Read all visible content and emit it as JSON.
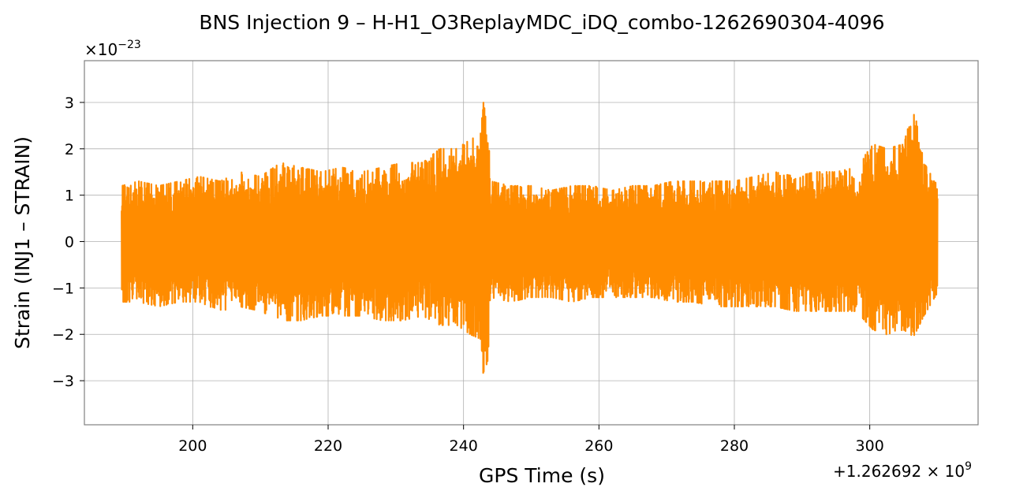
{
  "chart_data": {
    "type": "line",
    "title": "BNS Injection 9 – H-H1_O3ReplayMDC_iDQ_combo-1262690304-4096",
    "xlabel": "GPS Time (s)",
    "ylabel": "Strain (INJ1 – STRAIN)",
    "x_offset_label": "+1.262692 × 10",
    "x_offset_exp": "9",
    "y_scale_label": "×10",
    "y_scale_exp": "−23",
    "xlim": [
      184,
      316
    ],
    "ylim": [
      -3.95,
      3.9
    ],
    "x_ticks": [
      200,
      220,
      240,
      260,
      280,
      300
    ],
    "x_tick_labels": [
      "200",
      "220",
      "240",
      "260",
      "280",
      "300"
    ],
    "y_ticks": [
      -3,
      -2,
      -1,
      0,
      1,
      2,
      3
    ],
    "y_tick_labels": [
      "−3",
      "−2",
      "−1",
      "0",
      "1",
      "2",
      "3"
    ],
    "grid": true,
    "color": "#ff8c00",
    "series": [
      {
        "x_range": [
          189.5,
          310
        ],
        "envelope": [
          [
            189.5,
            1.2,
            -1.3
          ],
          [
            192,
            1.3,
            -1.3
          ],
          [
            195,
            1.2,
            -1.4
          ],
          [
            198,
            1.3,
            -1.3
          ],
          [
            201,
            1.4,
            -1.3
          ],
          [
            204,
            1.3,
            -1.5
          ],
          [
            207,
            1.5,
            -1.4
          ],
          [
            210,
            1.4,
            -1.5
          ],
          [
            213,
            1.7,
            -1.7
          ],
          [
            216,
            1.6,
            -1.7
          ],
          [
            219,
            1.5,
            -1.6
          ],
          [
            222,
            1.6,
            -1.6
          ],
          [
            225,
            1.5,
            -1.6
          ],
          [
            228,
            1.6,
            -1.7
          ],
          [
            231,
            1.7,
            -1.7
          ],
          [
            234,
            1.7,
            -1.6
          ],
          [
            236.5,
            2.0,
            -1.8
          ],
          [
            239,
            2.0,
            -1.8
          ],
          [
            241,
            2.2,
            -2.0
          ],
          [
            242.5,
            2.3,
            -2.1
          ],
          [
            243.3,
            3.55,
            -3.6
          ],
          [
            244,
            1.3,
            -1.2
          ],
          [
            247,
            1.2,
            -1.3
          ],
          [
            250,
            1.2,
            -1.2
          ],
          [
            253,
            1.1,
            -1.2
          ],
          [
            256,
            1.2,
            -1.3
          ],
          [
            259,
            1.2,
            -1.2
          ],
          [
            262,
            1.1,
            -1.2
          ],
          [
            265,
            1.2,
            -1.2
          ],
          [
            268,
            1.2,
            -1.2
          ],
          [
            271,
            1.3,
            -1.3
          ],
          [
            274,
            1.3,
            -1.3
          ],
          [
            277,
            1.3,
            -1.4
          ],
          [
            280,
            1.3,
            -1.4
          ],
          [
            283,
            1.4,
            -1.4
          ],
          [
            286,
            1.5,
            -1.4
          ],
          [
            289,
            1.4,
            -1.5
          ],
          [
            292,
            1.5,
            -1.5
          ],
          [
            295,
            1.5,
            -1.5
          ],
          [
            298,
            1.6,
            -1.5
          ],
          [
            300.5,
            2.1,
            -1.9
          ],
          [
            302.5,
            2.0,
            -2.0
          ],
          [
            305,
            2.1,
            -1.9
          ],
          [
            306.5,
            2.9,
            -2.05
          ],
          [
            308,
            1.7,
            -1.6
          ],
          [
            310,
            1.2,
            -1.1
          ]
        ]
      }
    ]
  }
}
